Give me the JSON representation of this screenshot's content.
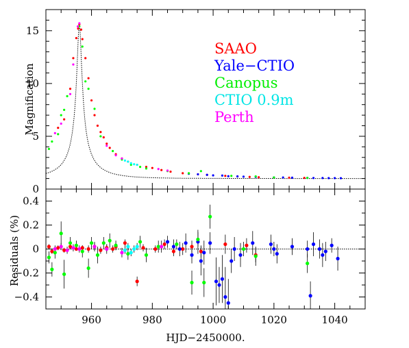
{
  "chart_data": [
    {
      "panel": "top",
      "type": "scatter",
      "ylabel": "Magnification",
      "xlim": [
        945,
        1050
      ],
      "ylim": [
        0,
        17
      ],
      "yticks": [
        0,
        5,
        10,
        15
      ],
      "legend": {
        "placement": "top-right",
        "entries": [
          {
            "name": "SAAO",
            "color": "#ff0000"
          },
          {
            "name": "Yale−CTIO",
            "color": "#0000ff"
          },
          {
            "name": "Canopus",
            "color": "#00ff00"
          },
          {
            "name": "CTIO 0.9m",
            "color": "#00ffff"
          },
          {
            "name": "Perth",
            "color": "#ff00ff"
          }
        ]
      },
      "model_curve": {
        "style": "dotted",
        "color": "#000000",
        "peak_x": 956,
        "peak_y": 15.6
      },
      "series": [
        {
          "name": "SAAO",
          "color": "#ff0000",
          "points": [
            [
              949,
              5.8
            ],
            [
              951,
              6.6
            ],
            [
              953,
              9.5
            ],
            [
              954,
              12.4
            ],
            [
              955,
              14.3
            ],
            [
              955.6,
              15.2
            ],
            [
              956,
              15.6
            ],
            [
              956.6,
              15.1
            ],
            [
              957,
              14.2
            ],
            [
              958,
              12.4
            ],
            [
              959,
              10.5
            ],
            [
              960,
              8.4
            ],
            [
              961,
              7.0
            ],
            [
              962,
              6.0
            ],
            [
              963,
              5.4
            ],
            [
              964,
              4.9
            ],
            [
              965,
              4.3
            ],
            [
              966,
              3.9
            ],
            [
              968,
              3.3
            ],
            [
              970,
              2.9
            ],
            [
              972,
              2.6
            ],
            [
              975,
              2.3
            ],
            [
              978,
              2.1
            ],
            [
              980,
              2.0
            ],
            [
              983,
              1.8
            ],
            [
              986,
              1.65
            ],
            [
              990,
              1.5
            ],
            [
              995,
              1.4
            ],
            [
              998,
              1.35
            ],
            [
              1004,
              1.25
            ],
            [
              1008,
              1.2
            ],
            [
              1012,
              1.15
            ],
            [
              1015,
              1.12
            ],
            [
              1020,
              1.1
            ],
            [
              1025,
              1.08
            ],
            [
              1030,
              1.06
            ]
          ]
        },
        {
          "name": "Yale−CTIO",
          "color": "#0000ff",
          "points": [
            [
              992,
              1.45
            ],
            [
              995,
              1.4
            ],
            [
              998,
              1.35
            ],
            [
              1000,
              1.3
            ],
            [
              1003,
              1.28
            ],
            [
              1005,
              1.22
            ],
            [
              1008,
              1.2
            ],
            [
              1010,
              1.18
            ],
            [
              1014,
              1.15
            ],
            [
              1020,
              1.1
            ],
            [
              1023,
              1.1
            ],
            [
              1026,
              1.08
            ],
            [
              1031,
              1.06
            ],
            [
              1033,
              1.05
            ],
            [
              1036,
              1.05
            ],
            [
              1038,
              1.04
            ],
            [
              1040,
              1.04
            ],
            [
              1042,
              1.03
            ]
          ]
        },
        {
          "name": "Canopus",
          "color": "#00ff00",
          "points": [
            [
              946,
              3.8
            ],
            [
              947,
              4.5
            ],
            [
              949,
              5.2
            ],
            [
              950,
              7.0
            ],
            [
              951,
              7.5
            ],
            [
              952,
              8.8
            ],
            [
              956,
              15.4
            ],
            [
              957,
              13.5
            ],
            [
              958,
              10.2
            ],
            [
              959,
              9.5
            ],
            [
              961,
              7.6
            ],
            [
              963,
              5.0
            ],
            [
              967,
              3.6
            ],
            [
              970,
              2.8
            ],
            [
              973,
              2.3
            ],
            [
              976,
              2.1
            ],
            [
              978,
              1.95
            ],
            [
              985,
              1.7
            ],
            [
              992,
              1.5
            ],
            [
              996,
              1.7
            ],
            [
              1006,
              1.25
            ],
            [
              1014,
              1.2
            ],
            [
              1020,
              1.1
            ],
            [
              1031,
              1.06
            ]
          ]
        },
        {
          "name": "CTIO 0.9m",
          "color": "#00ffff",
          "points": [
            [
              971,
              2.7
            ],
            [
              972,
              2.6
            ],
            [
              973,
              2.45
            ],
            [
              974,
              2.35
            ],
            [
              975,
              2.3
            ]
          ]
        },
        {
          "name": "Perth",
          "color": "#ff00ff",
          "points": [
            [
              948,
              5.3
            ],
            [
              950,
              6.2
            ],
            [
              953,
              9.0
            ],
            [
              954,
              11.8
            ],
            [
              955.5,
              15.4
            ],
            [
              956,
              15.7
            ],
            [
              965,
              4.1
            ],
            [
              968,
              3.2
            ],
            [
              970,
              2.9
            ],
            [
              982,
              1.9
            ],
            [
              985,
              1.75
            ]
          ]
        }
      ]
    },
    {
      "panel": "bottom",
      "type": "scatter",
      "xlabel": "HJD−2450000.",
      "ylabel": "Residuals (%)",
      "xlim": [
        945,
        1050
      ],
      "ylim": [
        -0.5,
        0.5
      ],
      "xticks": [
        960,
        980,
        1000,
        1020,
        1040
      ],
      "yticks": [
        -0.4,
        -0.2,
        0,
        0.2,
        0.4
      ],
      "zero_line": {
        "style": "dotted"
      },
      "series": [
        {
          "name": "SAAO",
          "color": "#ff0000",
          "points": [
            [
              946,
              0.02,
              0.02
            ],
            [
              947,
              -0.02,
              0.02
            ],
            [
              949,
              0.01,
              0.02
            ],
            [
              951,
              -0.01,
              0.02
            ],
            [
              953,
              0.02,
              0.02
            ],
            [
              955,
              0.0,
              0.01
            ],
            [
              957,
              0.01,
              0.02
            ],
            [
              959,
              0.0,
              0.03
            ],
            [
              961,
              0.02,
              0.03
            ],
            [
              963,
              -0.01,
              0.03
            ],
            [
              965,
              0.01,
              0.03
            ],
            [
              967,
              0.0,
              0.03
            ],
            [
              968,
              0.02,
              0.03
            ],
            [
              971,
              0.05,
              0.03
            ],
            [
              975,
              -0.27,
              0.04
            ],
            [
              977,
              0.01,
              0.03
            ],
            [
              981,
              0.0,
              0.03
            ],
            [
              984,
              0.04,
              0.04
            ],
            [
              987,
              -0.02,
              0.04
            ],
            [
              990,
              0.0,
              0.05
            ],
            [
              993,
              0.02,
              0.05
            ],
            [
              996,
              -0.02,
              0.05
            ],
            [
              1004,
              0.04,
              0.08
            ],
            [
              1011,
              0.03,
              0.06
            ],
            [
              1014,
              -0.05,
              0.06
            ]
          ]
        },
        {
          "name": "Yale−CTIO",
          "color": "#0000ff",
          "points": [
            [
              985,
              0.06,
              0.05
            ],
            [
              987,
              0.02,
              0.06
            ],
            [
              989,
              0.0,
              0.06
            ],
            [
              991,
              0.05,
              0.08
            ],
            [
              993,
              -0.05,
              0.07
            ],
            [
              995,
              0.06,
              0.1
            ],
            [
              996,
              -0.1,
              0.12
            ],
            [
              997,
              -0.03,
              0.1
            ],
            [
              999,
              0.05,
              0.09
            ],
            [
              1001,
              -0.27,
              0.2
            ],
            [
              1002,
              -0.3,
              0.15
            ],
            [
              1003,
              -0.25,
              0.2
            ],
            [
              1004,
              -0.4,
              0.25
            ],
            [
              1005,
              -0.45,
              0.2
            ],
            [
              1006,
              -0.1,
              0.1
            ],
            [
              1007,
              0.0,
              0.1
            ],
            [
              1009,
              -0.05,
              0.1
            ],
            [
              1013,
              0.05,
              0.1
            ],
            [
              1019,
              0.04,
              0.08
            ],
            [
              1020,
              0.0,
              0.06
            ],
            [
              1021,
              -0.04,
              0.08
            ],
            [
              1026,
              0.02,
              0.07
            ],
            [
              1031,
              0.0,
              0.07
            ],
            [
              1032,
              -0.39,
              0.12
            ],
            [
              1033,
              0.04,
              0.1
            ],
            [
              1035,
              0.0,
              0.08
            ],
            [
              1036,
              -0.05,
              0.1
            ],
            [
              1037,
              -0.02,
              0.08
            ],
            [
              1039,
              0.03,
              0.06
            ],
            [
              1041,
              -0.08,
              0.1
            ]
          ]
        },
        {
          "name": "Canopus",
          "color": "#00ff00",
          "points": [
            [
              946,
              -0.07,
              0.05
            ],
            [
              947,
              -0.17,
              0.06
            ],
            [
              948,
              -0.03,
              0.05
            ],
            [
              950,
              0.13,
              0.1
            ],
            [
              951,
              -0.21,
              0.12
            ],
            [
              953,
              0.05,
              0.05
            ],
            [
              955,
              0.03,
              0.04
            ],
            [
              957,
              -0.02,
              0.05
            ],
            [
              959,
              -0.16,
              0.08
            ],
            [
              960,
              0.05,
              0.05
            ],
            [
              962,
              -0.05,
              0.07
            ],
            [
              964,
              0.05,
              0.05
            ],
            [
              966,
              0.07,
              0.06
            ],
            [
              968,
              0.03,
              0.04
            ],
            [
              972,
              -0.04,
              0.05
            ],
            [
              976,
              0.06,
              0.05
            ],
            [
              978,
              -0.05,
              0.06
            ],
            [
              982,
              0.02,
              0.05
            ],
            [
              988,
              0.04,
              0.04
            ],
            [
              993,
              -0.28,
              0.1
            ],
            [
              995,
              0.08,
              0.06
            ],
            [
              997,
              -0.28,
              0.12
            ],
            [
              999,
              0.27,
              0.1
            ],
            [
              1010,
              0.0,
              0.06
            ],
            [
              1014,
              -0.06,
              0.08
            ],
            [
              1031,
              -0.12,
              0.08
            ]
          ]
        },
        {
          "name": "CTIO 0.9m",
          "color": "#00ffff",
          "points": [
            [
              971,
              -0.01,
              0.03
            ],
            [
              972,
              0.02,
              0.03
            ],
            [
              973,
              -0.03,
              0.03
            ],
            [
              974,
              0.0,
              0.03
            ],
            [
              975,
              0.02,
              0.03
            ]
          ]
        },
        {
          "name": "Perth",
          "color": "#ff00ff",
          "points": [
            [
              948,
              0.0,
              0.03
            ],
            [
              950,
              0.02,
              0.03
            ],
            [
              952,
              -0.01,
              0.03
            ],
            [
              954,
              0.01,
              0.03
            ],
            [
              956,
              0.0,
              0.03
            ],
            [
              961,
              0.02,
              0.04
            ],
            [
              965,
              0.0,
              0.04
            ],
            [
              970,
              -0.03,
              0.04
            ],
            [
              983,
              0.02,
              0.05
            ]
          ]
        }
      ]
    }
  ]
}
